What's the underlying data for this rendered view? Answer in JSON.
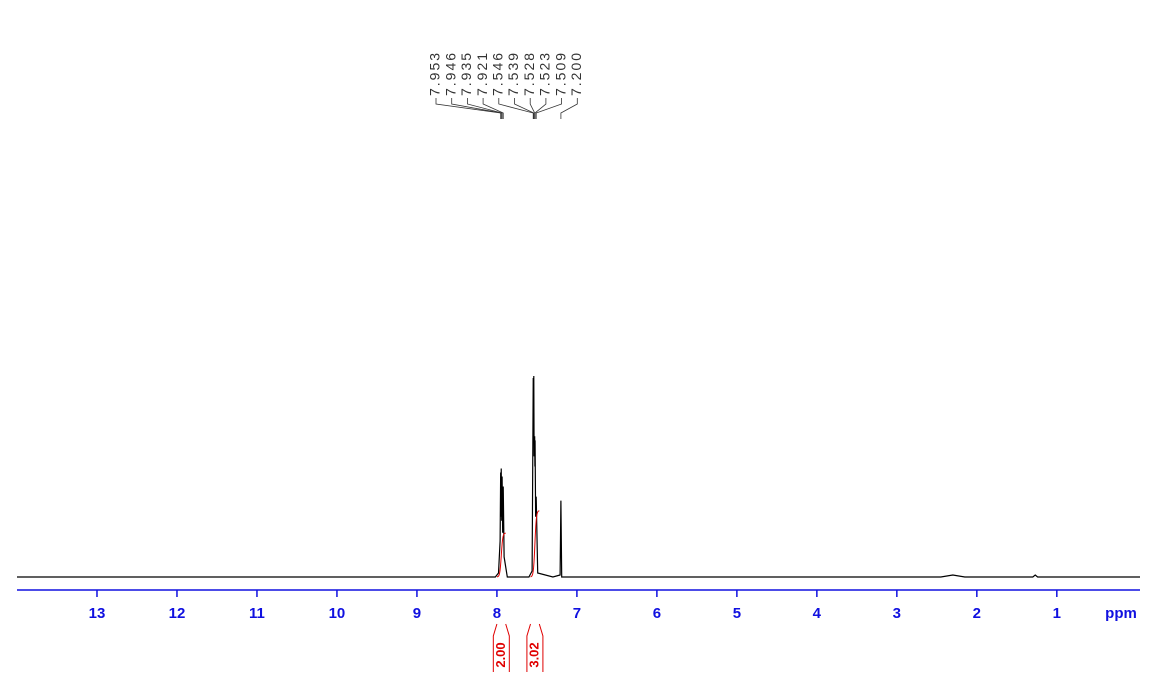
{
  "chart_data": {
    "type": "nmr",
    "x_label": "ppm",
    "xlim": [
      14,
      -0.04
    ],
    "xticks": [
      13,
      12,
      11,
      10,
      9,
      8,
      7,
      6,
      5,
      4,
      3,
      2,
      1
    ],
    "ylim": [
      0,
      100
    ],
    "color": "#000000",
    "axis_color": "#1010e0",
    "integral_color": "#e00000",
    "x": [
      14,
      8.02,
      7.98,
      7.96,
      7.953,
      7.95,
      7.946,
      7.94,
      7.935,
      7.928,
      7.921,
      7.91,
      7.87,
      7.6,
      7.56,
      7.546,
      7.543,
      7.539,
      7.535,
      7.528,
      7.525,
      7.523,
      7.516,
      7.509,
      7.49,
      7.3,
      7.21,
      7.2,
      7.19,
      2.45,
      2.3,
      2.15,
      1.3,
      1.27,
      1.24,
      -0.04
    ],
    "values": [
      0,
      0,
      2,
      18,
      52,
      30,
      54,
      28,
      50,
      22,
      45,
      10,
      0,
      0,
      3,
      99,
      70,
      100,
      60,
      70,
      55,
      68,
      30,
      40,
      2,
      0,
      1,
      38,
      0,
      0,
      1,
      0,
      0,
      1,
      0,
      0
    ],
    "peaks": [
      7.953,
      7.946,
      7.935,
      7.921,
      7.546,
      7.539,
      7.528,
      7.523,
      7.509,
      {
        "value": 7.2,
        "label": "7.200"
      }
    ],
    "integrals": [
      {
        "range": [
          8.0,
          7.89
        ],
        "value": 2,
        "label": "2.00"
      },
      {
        "range": [
          7.58,
          7.47
        ],
        "value": 3.02,
        "label": "3.02"
      }
    ]
  }
}
